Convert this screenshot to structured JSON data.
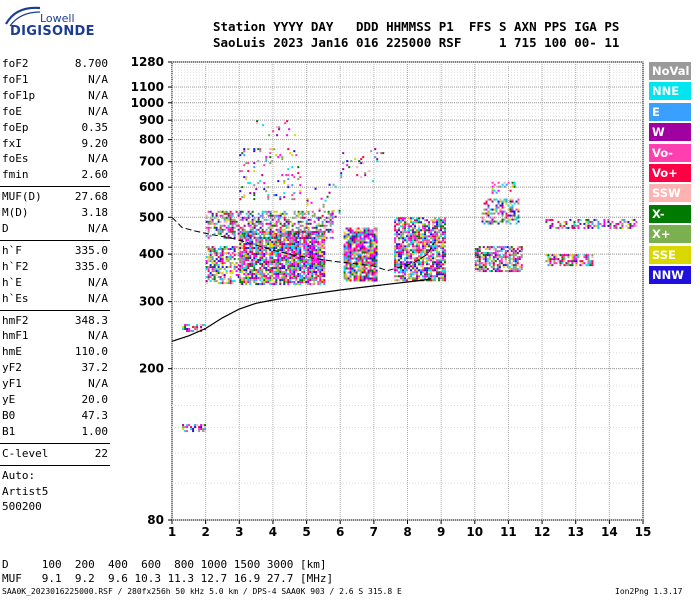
{
  "logo": {
    "line1": "Lowell",
    "line2": "DIGISONDE"
  },
  "header": {
    "line1": "Station YYYY DAY   DDD HHMMSS P1  FFS S AXN PPS IGA PS",
    "line2": "SaoLuis 2023 Jan16 016 225000 RSF     1 715 100 00- 11"
  },
  "params_group1": [
    {
      "key": "foF2",
      "value": "8.700"
    },
    {
      "key": "foF1",
      "value": "N/A"
    },
    {
      "key": "foF1p",
      "value": "N/A"
    },
    {
      "key": "foE",
      "value": "N/A"
    },
    {
      "key": "foEp",
      "value": "0.35"
    },
    {
      "key": "fxI",
      "value": "9.20"
    },
    {
      "key": "foEs",
      "value": "N/A"
    },
    {
      "key": "fmin",
      "value": "2.60"
    }
  ],
  "params_group2": [
    {
      "key": "MUF(D)",
      "value": "27.68"
    },
    {
      "key": "M(D)",
      "value": "3.18"
    },
    {
      "key": "D",
      "value": "N/A"
    }
  ],
  "params_group3": [
    {
      "key": "h`F",
      "value": "335.0"
    },
    {
      "key": "h`F2",
      "value": "335.0"
    },
    {
      "key": "h`E",
      "value": "N/A"
    },
    {
      "key": "h`Es",
      "value": "N/A"
    }
  ],
  "params_group4": [
    {
      "key": "hmF2",
      "value": "348.3"
    },
    {
      "key": "hmF1",
      "value": "N/A"
    },
    {
      "key": "hmE",
      "value": "110.0"
    },
    {
      "key": "yF2",
      "value": "37.2"
    },
    {
      "key": "yF1",
      "value": "N/A"
    },
    {
      "key": "yE",
      "value": "20.0"
    },
    {
      "key": "B0",
      "value": "47.3"
    },
    {
      "key": "B1",
      "value": "1.00"
    }
  ],
  "clevel": {
    "key": "C-level",
    "value": "22"
  },
  "autoscaling": [
    "Auto:",
    "Artist5",
    "500200"
  ],
  "legend": [
    {
      "label": "NoVal",
      "color": "#9a9a9a"
    },
    {
      "label": "NNE",
      "color": "#00e5ee"
    },
    {
      "label": "E",
      "color": "#3aa0ff"
    },
    {
      "label": "W",
      "color": "#a000a0"
    },
    {
      "label": "Vo-",
      "color": "#ff3fb0"
    },
    {
      "label": "Vo+",
      "color": "#ff0044"
    },
    {
      "label": "SSW",
      "color": "#ffb2b2"
    },
    {
      "label": "X-",
      "color": "#007a00"
    },
    {
      "label": "X+",
      "color": "#7ab050"
    },
    {
      "label": "SSE",
      "color": "#d8d800"
    },
    {
      "label": "NNW",
      "color": "#2010e0"
    }
  ],
  "footer": {
    "d_row": "D     100  200  400  600  800 1000 1500 3000 [km]",
    "muf_row": "MUF   9.1  9.2  9.6 10.3 11.3 12.7 16.9 27.7 [MHz]",
    "file_info": "SAA0K_2023016225000.RSF / 280fx256h 50 kHz 5.0 km / DPS-4 SAA0K 903 / 2.6 S 315.8 E",
    "version": "Ion2Png 1.3.17"
  },
  "chart_data": {
    "type": "scatter",
    "xlim": [
      1,
      15
    ],
    "ylim": [
      80,
      1280
    ],
    "y_scale": "log",
    "x_ticks": [
      1,
      2,
      3,
      4,
      5,
      6,
      7,
      8,
      9,
      10,
      11,
      12,
      13,
      14,
      15
    ],
    "y_ticks": [
      80,
      200,
      300,
      400,
      500,
      600,
      700,
      800,
      900,
      1000,
      1100,
      1280
    ],
    "grid": true,
    "legend_position": "right",
    "clusters": [
      {
        "name": "low-echo-A",
        "x": [
          1.3,
          2.0
        ],
        "y": [
          250,
          262
        ],
        "density": 0.55
      },
      {
        "name": "low-echo-B",
        "x": [
          1.3,
          2.0
        ],
        "y": [
          137,
          143
        ],
        "density": 0.6
      },
      {
        "name": "F-main-1",
        "x": [
          2.0,
          3.0
        ],
        "y": [
          335,
          420
        ],
        "density": 0.55
      },
      {
        "name": "F-main-2",
        "x": [
          3.0,
          5.5
        ],
        "y": [
          335,
          460
        ],
        "density": 0.85
      },
      {
        "name": "F-mid",
        "x": [
          2.0,
          5.8
        ],
        "y": [
          440,
          520
        ],
        "density": 0.5
      },
      {
        "name": "F-block-6",
        "x": [
          6.1,
          7.1
        ],
        "y": [
          340,
          470
        ],
        "density": 0.85
      },
      {
        "name": "F-block-8",
        "x": [
          7.6,
          9.1
        ],
        "y": [
          340,
          500
        ],
        "density": 0.75
      },
      {
        "name": "F-upper-3",
        "x": [
          3.0,
          4.8
        ],
        "y": [
          560,
          760
        ],
        "density": 0.12
      },
      {
        "name": "F-high-3",
        "x": [
          3.5,
          4.8
        ],
        "y": [
          820,
          900
        ],
        "density": 0.08
      },
      {
        "name": "F-cluster-10",
        "x": [
          10.0,
          11.4
        ],
        "y": [
          360,
          420
        ],
        "density": 0.7
      },
      {
        "name": "F-cluster-10b",
        "x": [
          10.2,
          11.3
        ],
        "y": [
          480,
          560
        ],
        "density": 0.5
      },
      {
        "name": "F-cluster-10c",
        "x": [
          10.5,
          11.2
        ],
        "y": [
          580,
          620
        ],
        "density": 0.35
      },
      {
        "name": "X-right-1",
        "x": [
          12.1,
          13.5
        ],
        "y": [
          375,
          400
        ],
        "density": 0.6
      },
      {
        "name": "X-right-2",
        "x": [
          12.1,
          14.8
        ],
        "y": [
          470,
          495
        ],
        "density": 0.45
      },
      {
        "name": "sparse-6-7",
        "x": [
          6.0,
          7.3
        ],
        "y": [
          620,
          760
        ],
        "density": 0.06
      },
      {
        "name": "sparse-mid-5",
        "x": [
          5.0,
          6.0
        ],
        "y": [
          500,
          620
        ],
        "density": 0.06
      }
    ],
    "profile_line": {
      "x": [
        1.0,
        1.5,
        2.0,
        2.5,
        3.0,
        3.5,
        4.0,
        4.5,
        5.0,
        6.0,
        7.0,
        8.0,
        8.5,
        8.7
      ],
      "y": [
        236,
        244,
        255,
        272,
        287,
        297,
        303,
        308,
        313,
        322,
        330,
        338,
        342,
        345
      ]
    },
    "trace_line": {
      "x": [
        1.0,
        1.3,
        1.7,
        2.2,
        2.8,
        3.4,
        4.0,
        4.6,
        5.2,
        5.8,
        6.4,
        7.0,
        7.4,
        7.8,
        8.2,
        8.6,
        8.8
      ],
      "y": [
        500,
        470,
        460,
        450,
        440,
        425,
        410,
        398,
        390,
        383,
        378,
        372,
        362,
        370,
        380,
        400,
        430
      ]
    }
  }
}
